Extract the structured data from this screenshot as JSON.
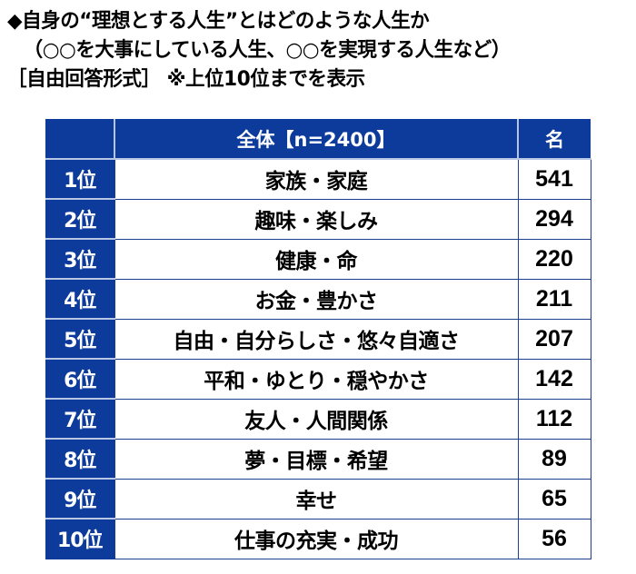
{
  "title": {
    "line1": "◆自身の“理想とする人生”とはどのような人生か",
    "line2": "（○○を大事にしている人生、○○を実現する人生など）",
    "line3": "［自由回答形式］ ※上位10位までを表示"
  },
  "table": {
    "header": {
      "rank": "",
      "answer": "全体【n=2400】",
      "count": "名"
    },
    "rows": [
      {
        "rank": "1位",
        "answer": "家族・家庭",
        "count": "541"
      },
      {
        "rank": "2位",
        "answer": "趣味・楽しみ",
        "count": "294"
      },
      {
        "rank": "3位",
        "answer": "健康・命",
        "count": "220"
      },
      {
        "rank": "4位",
        "answer": "お金・豊かさ",
        "count": "211"
      },
      {
        "rank": "5位",
        "answer": "自由・自分らしさ・悠々自適さ",
        "count": "207"
      },
      {
        "rank": "6位",
        "answer": "平和・ゆとり・穏やかさ",
        "count": "142"
      },
      {
        "rank": "7位",
        "answer": "友人・人間関係",
        "count": "112"
      },
      {
        "rank": "8位",
        "answer": "夢・目標・希望",
        "count": "89"
      },
      {
        "rank": "9位",
        "answer": "幸せ",
        "count": "65"
      },
      {
        "rank": "10位",
        "answer": "仕事の充実・成功",
        "count": "56"
      }
    ]
  },
  "colors": {
    "header_bg": "#0d3b9c",
    "header_text": "#ffffff",
    "cell_border": "#1b3f8e",
    "divider_light": "#b8c6e6"
  }
}
